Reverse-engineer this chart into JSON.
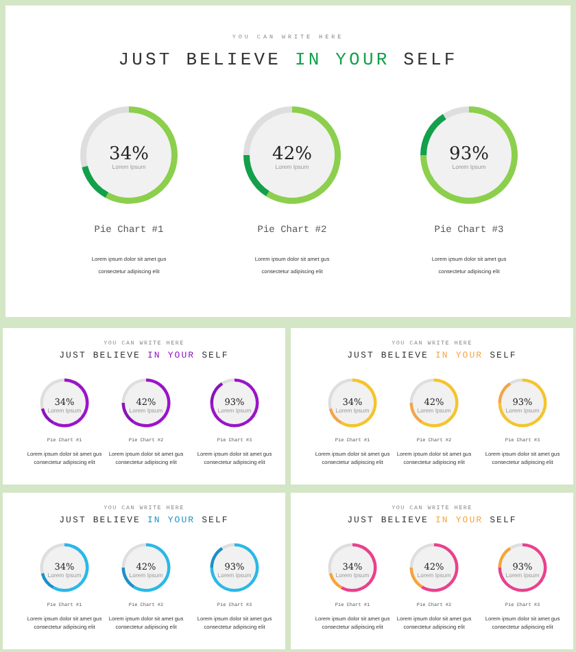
{
  "chart_data": [
    {
      "type": "donut",
      "title": "Pie Chart #1",
      "categories": [
        null,
        null,
        null
      ],
      "values": [
        58,
        13,
        29
      ],
      "colors": [
        "#8ccf4d",
        "#12a04b",
        "#dedede"
      ],
      "annotations": [
        "34%",
        "Lorem Ipsum",
        "Lorem ipsum dolor sit amet gus",
        "consectetur adipiscing elit",
        "YOU CAN WRITE HERE",
        "JUST BELIEVE",
        "IN YOUR",
        "SELF"
      ]
    },
    {
      "type": "donut",
      "title": "Pie Chart #2",
      "categories": [
        null,
        null,
        null
      ],
      "values": [
        59,
        16,
        25
      ],
      "colors": [
        "#8ccf4d",
        "#12a04b",
        "#dedede"
      ],
      "annotations": [
        "42%",
        "Lorem Ipsum",
        "Lorem ipsum dolor sit amet gus",
        "consectetur adipiscing elit"
      ]
    },
    {
      "type": "donut",
      "title": "Pie Chart #3",
      "categories": [
        null,
        null,
        null
      ],
      "values": [
        75,
        16,
        9
      ],
      "colors": [
        "#8ccf4d",
        "#12a04b",
        "#dedede"
      ],
      "annotations": [
        "93%",
        "Lorem Ipsum",
        "Lorem ipsum dolor sit amet gus",
        "consectetur adipiscing elit"
      ]
    },
    {
      "type": "donut",
      "title": "Pie Chart #1",
      "categories": [
        null,
        null,
        null
      ],
      "values": [
        58,
        13,
        29
      ],
      "colors": [
        "#9b14c8",
        "#8a12bc",
        "#dedede"
      ],
      "annotations": [
        "34%",
        "Lorem Ipsum",
        "Lorem ipsum dolor sit amet gus",
        "consectetur adipiscing elit",
        "YOU CAN WRITE HERE",
        "JUST BELIEVE",
        "IN YOUR",
        "SELF"
      ]
    },
    {
      "type": "donut",
      "title": "Pie Chart #2",
      "categories": [
        null,
        null,
        null
      ],
      "values": [
        59,
        16,
        25
      ],
      "colors": [
        "#9b14c8",
        "#8a12bc",
        "#dedede"
      ],
      "annotations": [
        "42%",
        "Lorem Ipsum",
        "Lorem ipsum dolor sit amet gus",
        "consectetur adipiscing elit"
      ]
    },
    {
      "type": "donut",
      "title": "Pie Chart #3",
      "categories": [
        null,
        null,
        null
      ],
      "values": [
        75,
        16,
        9
      ],
      "colors": [
        "#9b14c8",
        "#8a12bc",
        "#dedede"
      ],
      "annotations": [
        "93%",
        "Lorem Ipsum",
        "Lorem ipsum dolor sit amet gus",
        "consectetur adipiscing elit"
      ]
    },
    {
      "type": "donut",
      "title": "Pie Chart #1",
      "categories": [
        null,
        null,
        null
      ],
      "values": [
        58,
        13,
        29
      ],
      "colors": [
        "#f5c42c",
        "#f2a54a",
        "#dedede"
      ],
      "annotations": [
        "34%",
        "Lorem Ipsum",
        "Lorem ipsum dolor sit amet gus",
        "consectetur adipiscing elit",
        "YOU CAN WRITE HERE",
        "JUST BELIEVE",
        "IN YOUR",
        "SELF"
      ]
    },
    {
      "type": "donut",
      "title": "Pie Chart #2",
      "categories": [
        null,
        null,
        null
      ],
      "values": [
        59,
        16,
        25
      ],
      "colors": [
        "#f5c42c",
        "#f2a54a",
        "#dedede"
      ],
      "annotations": [
        "42%",
        "Lorem Ipsum",
        "Lorem ipsum dolor sit amet gus",
        "consectetur adipiscing elit"
      ]
    },
    {
      "type": "donut",
      "title": "Pie Chart #3",
      "categories": [
        null,
        null,
        null
      ],
      "values": [
        75,
        16,
        9
      ],
      "colors": [
        "#f5c42c",
        "#f2a54a",
        "#dedede"
      ],
      "annotations": [
        "93%",
        "Lorem Ipsum",
        "Lorem ipsum dolor sit amet gus",
        "consectetur adipiscing elit"
      ]
    },
    {
      "type": "donut",
      "title": "Pie Chart #1",
      "categories": [
        null,
        null,
        null
      ],
      "values": [
        58,
        13,
        29
      ],
      "colors": [
        "#2ab8e6",
        "#1d8fc6",
        "#dedede"
      ],
      "annotations": [
        "34%",
        "Lorem Ipsum",
        "Lorem ipsum dolor sit amet gus",
        "consectetur adipiscing elit",
        "YOU CAN WRITE HERE",
        "JUST BELIEVE",
        "IN YOUR",
        "SELF"
      ]
    },
    {
      "type": "donut",
      "title": "Pie Chart #2",
      "categories": [
        null,
        null,
        null
      ],
      "values": [
        59,
        16,
        25
      ],
      "colors": [
        "#2ab8e6",
        "#1d8fc6",
        "#dedede"
      ],
      "annotations": [
        "42%",
        "Lorem Ipsum",
        "Lorem ipsum dolor sit amet gus",
        "consectetur adipiscing elit"
      ]
    },
    {
      "type": "donut",
      "title": "Pie Chart #3",
      "categories": [
        null,
        null,
        null
      ],
      "values": [
        75,
        16,
        9
      ],
      "colors": [
        "#2ab8e6",
        "#1d8fc6",
        "#dedede"
      ],
      "annotations": [
        "93%",
        "Lorem Ipsum",
        "Lorem ipsum dolor sit amet gus",
        "consectetur adipiscing elit"
      ]
    },
    {
      "type": "donut",
      "title": "Pie Chart #1",
      "categories": [
        null,
        null,
        null
      ],
      "values": [
        58,
        13,
        29
      ],
      "colors": [
        "#e9418d",
        "#f5a43a",
        "#dedede"
      ],
      "annotations": [
        "34%",
        "Lorem Ipsum",
        "Lorem ipsum dolor sit amet gus",
        "consectetur adipiscing elit",
        "YOU CAN WRITE HERE",
        "JUST BELIEVE",
        "IN YOUR",
        "SELF"
      ]
    },
    {
      "type": "donut",
      "title": "Pie Chart #2",
      "categories": [
        null,
        null,
        null
      ],
      "values": [
        59,
        16,
        25
      ],
      "colors": [
        "#e9418d",
        "#f5a43a",
        "#dedede"
      ],
      "annotations": [
        "42%",
        "Lorem Ipsum",
        "Lorem ipsum dolor sit amet gus",
        "consectetur adipiscing elit"
      ]
    },
    {
      "type": "donut",
      "title": "Pie Chart #3",
      "categories": [
        null,
        null,
        null
      ],
      "values": [
        75,
        16,
        9
      ],
      "colors": [
        "#e9418d",
        "#f5a43a",
        "#dedede"
      ],
      "annotations": [
        "93%",
        "Lorem Ipsum",
        "Lorem ipsum dolor sit amet gus",
        "consectetur adipiscing elit"
      ]
    }
  ]
}
